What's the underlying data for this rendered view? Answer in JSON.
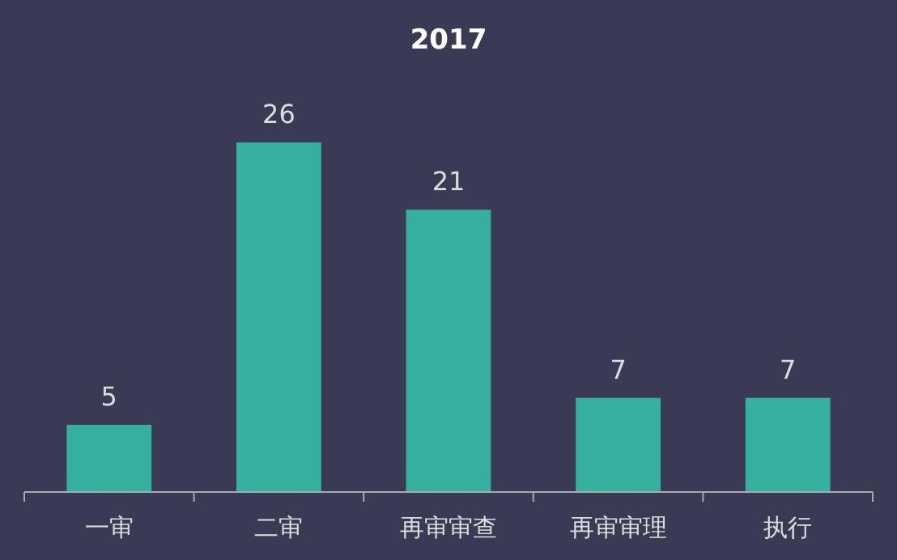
{
  "chart_data": {
    "type": "bar",
    "title": "2017",
    "categories": [
      "一审",
      "二审",
      "再审审查",
      "再审审理",
      "执行"
    ],
    "values": [
      5,
      26,
      21,
      7,
      7
    ],
    "color": "#35b09e",
    "data_labels": true
  }
}
